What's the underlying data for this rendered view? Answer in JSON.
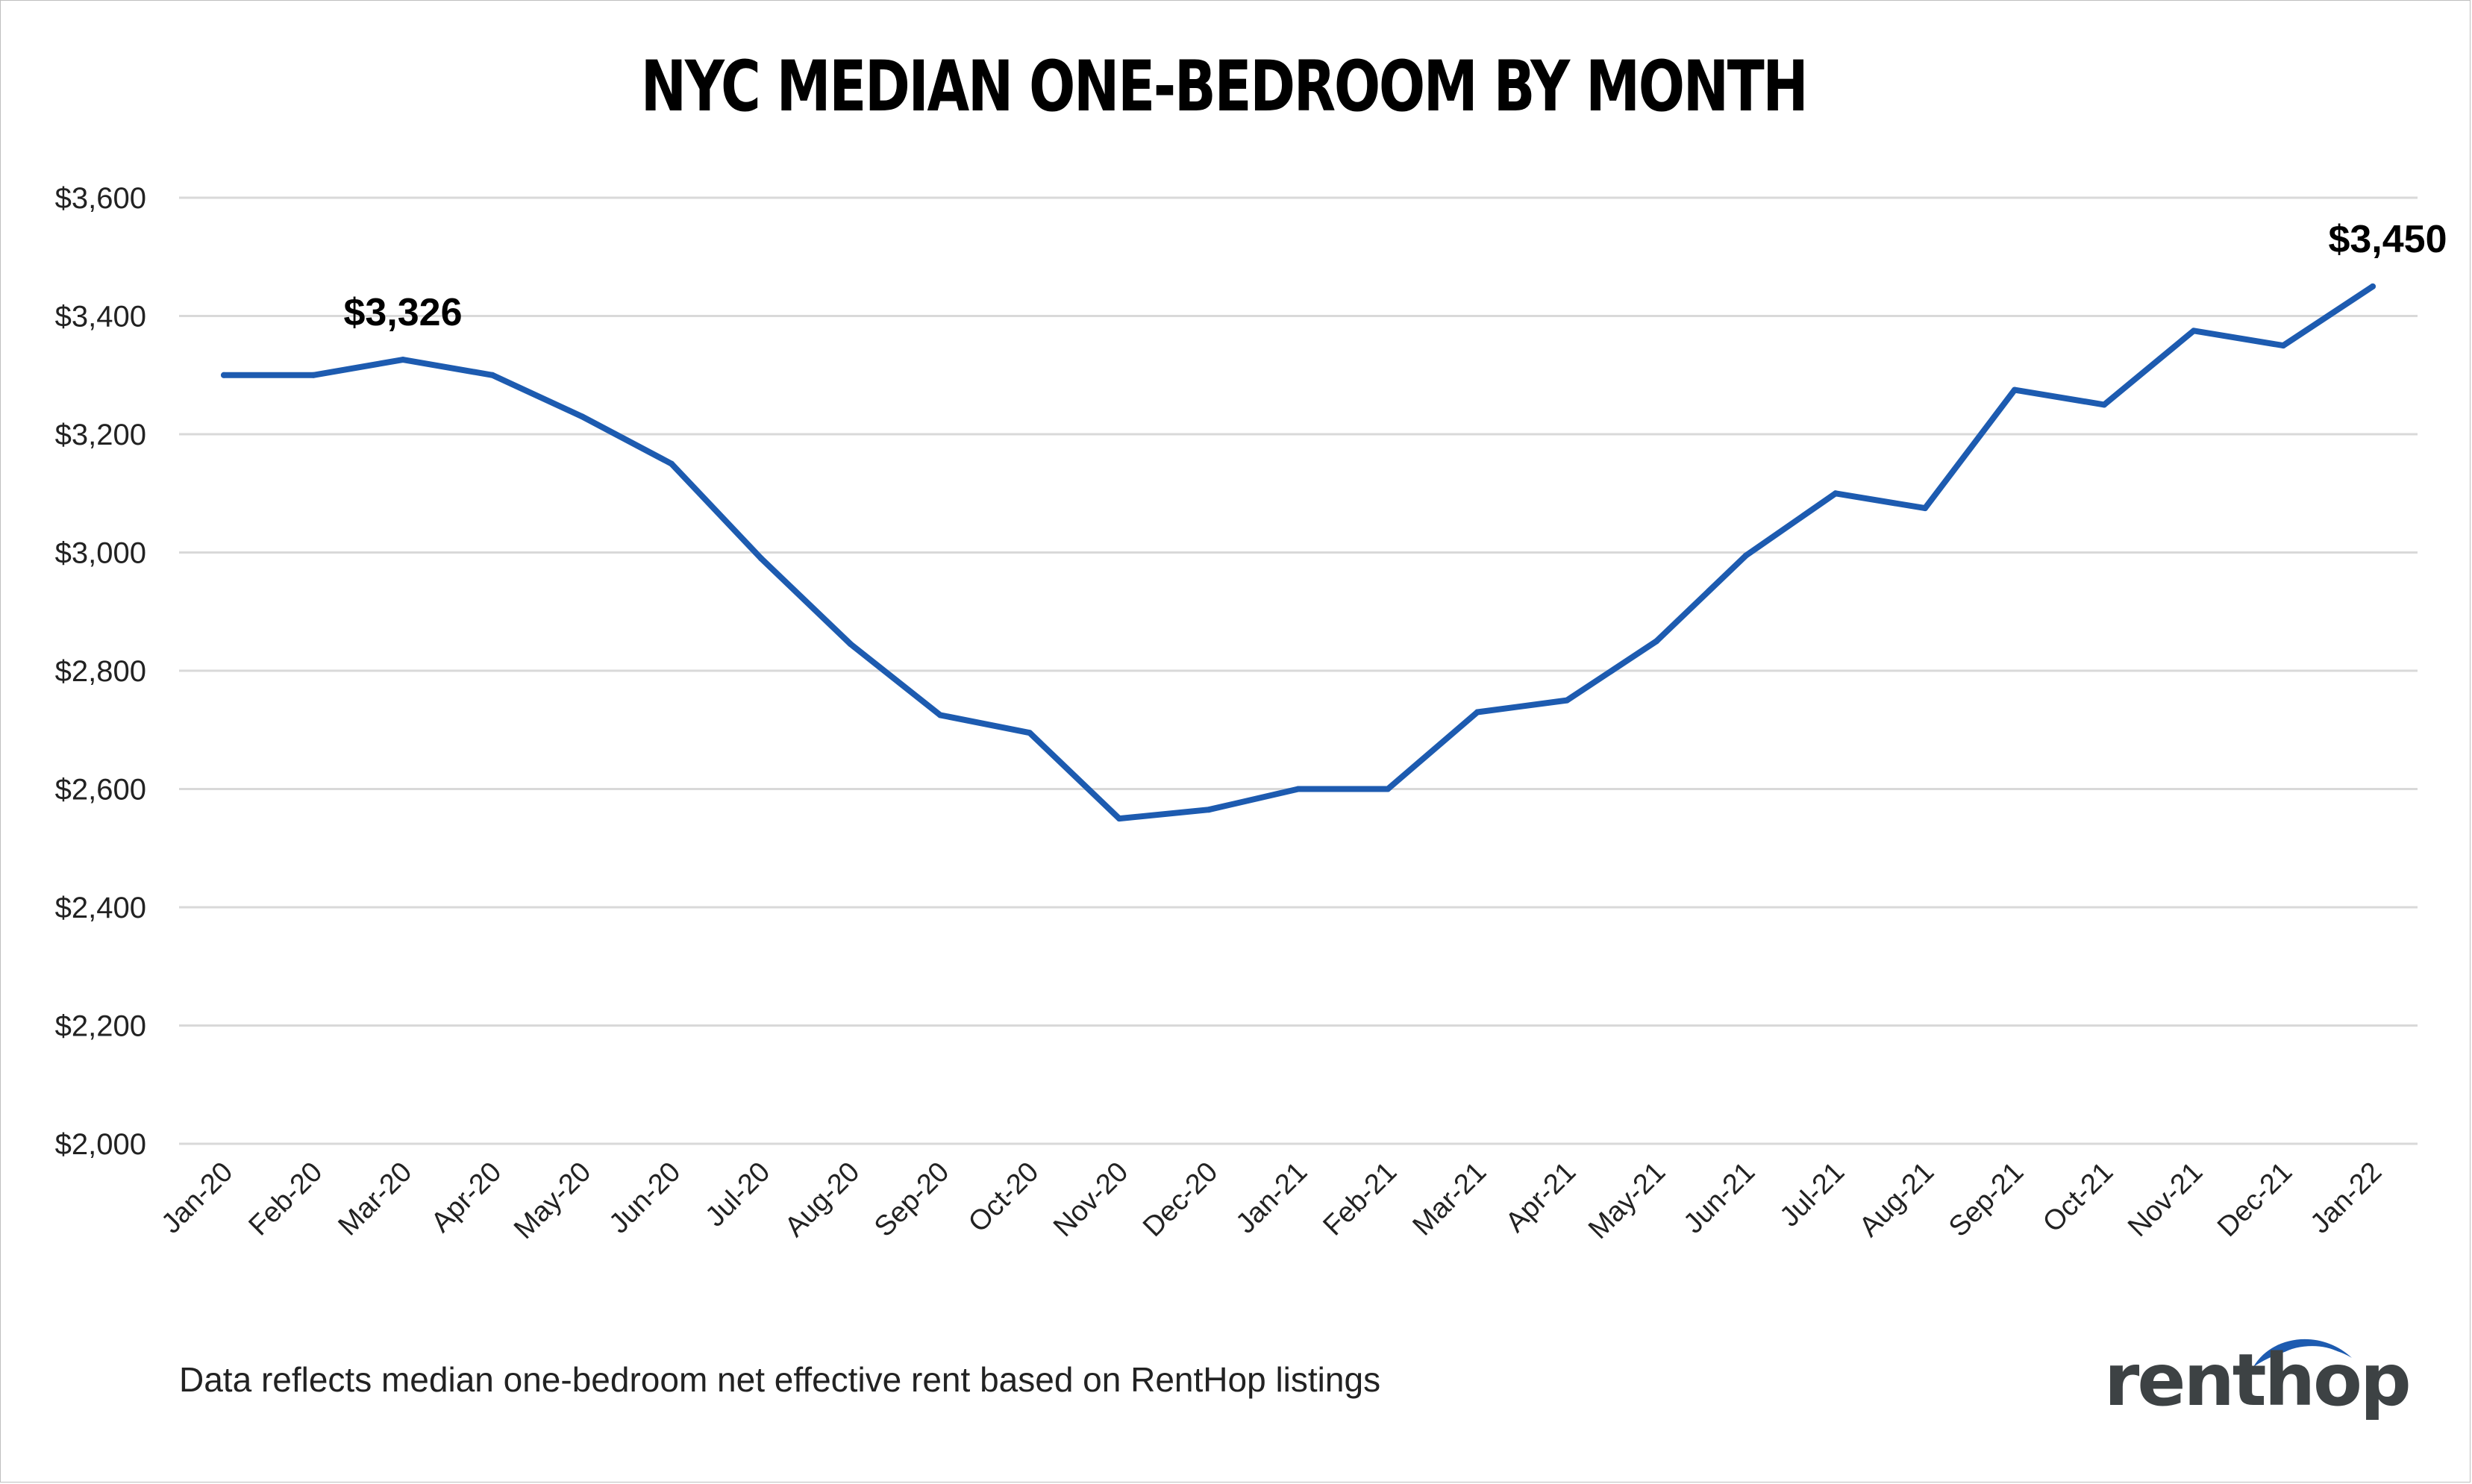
{
  "chart_data": {
    "type": "line",
    "title": "NYC MEDIAN ONE-BEDROOM BY MONTH",
    "categories": [
      "Jan-20",
      "Feb-20",
      "Mar-20",
      "Apr-20",
      "May-20",
      "Jun-20",
      "Jul-20",
      "Aug-20",
      "Sep-20",
      "Oct-20",
      "Nov-20",
      "Dec-20",
      "Jan-21",
      "Feb-21",
      "Mar-21",
      "Apr-21",
      "May-21",
      "Jun-21",
      "Jul-21",
      "Aug-21",
      "Sep-21",
      "Oct-21",
      "Nov-21",
      "Dec-21",
      "Jan-22"
    ],
    "values": [
      3300,
      3300,
      3326,
      3300,
      3230,
      3150,
      2990,
      2845,
      2725,
      2695,
      2550,
      2565,
      2600,
      2600,
      2730,
      2750,
      2850,
      2995,
      3100,
      3075,
      3275,
      3250,
      3375,
      3350,
      3450
    ],
    "yticks": [
      2000,
      2200,
      2400,
      2600,
      2800,
      3000,
      3200,
      3400,
      3600
    ],
    "ytick_labels": [
      "$2,000",
      "$2,200",
      "$2,400",
      "$2,600",
      "$2,800",
      "$3,000",
      "$3,200",
      "$3,400",
      "$3,600"
    ],
    "ylim": [
      2000,
      3600
    ],
    "xlabel": "",
    "ylabel": "",
    "grid": true,
    "line_color": "#1d5bb0",
    "grid_color": "#d9d9d9",
    "annotations": [
      {
        "index": 2,
        "text": "$3,326"
      },
      {
        "index": 24,
        "text": "$3,450"
      }
    ]
  },
  "footnote": "Data reflects median one-bedroom net effective rent based on RentHop listings",
  "brand": {
    "name": "renthop",
    "text_color": "#3d4244",
    "arc_color": "#1d5bb0"
  }
}
